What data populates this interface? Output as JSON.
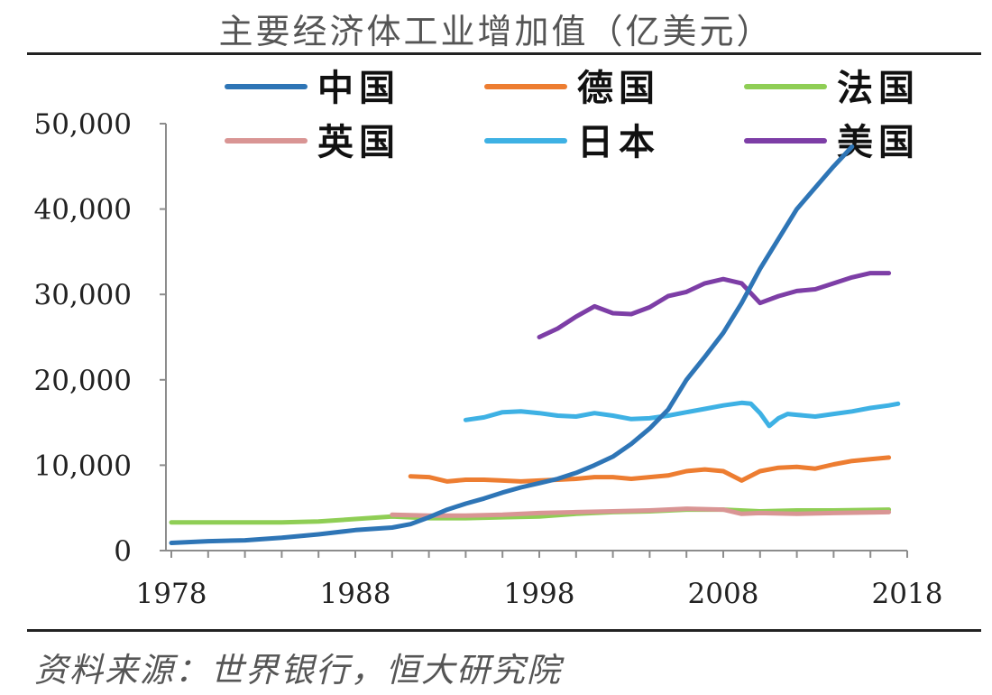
{
  "header": {
    "title": "主要经济体工业增加值（亿美元）"
  },
  "footer": {
    "source": "资料来源：世界银行，恒大研究院"
  },
  "chart_data": {
    "type": "line",
    "title": "主要经济体工业增加值（亿美元）",
    "xlabel": "",
    "ylabel": "",
    "xlim": [
      1978,
      2018
    ],
    "ylim": [
      0,
      50000
    ],
    "x_ticks": [
      1978,
      1988,
      1998,
      2008,
      2018
    ],
    "x_tick_labels": [
      "1978",
      "1988",
      "1998",
      "2008",
      "2018"
    ],
    "y_ticks": [
      0,
      10000,
      20000,
      30000,
      40000,
      50000
    ],
    "y_tick_labels": [
      "0",
      "10,000",
      "20,000",
      "30,000",
      "40,000",
      "50,000"
    ],
    "grid": false,
    "legend_position": "top",
    "series": [
      {
        "name": "中国",
        "color": "#2e75b6",
        "points": [
          [
            1978,
            900
          ],
          [
            1980,
            1100
          ],
          [
            1982,
            1200
          ],
          [
            1984,
            1500
          ],
          [
            1986,
            1900
          ],
          [
            1988,
            2400
          ],
          [
            1990,
            2700
          ],
          [
            1991,
            3100
          ],
          [
            1992,
            3900
          ],
          [
            1993,
            4800
          ],
          [
            1994,
            5500
          ],
          [
            1995,
            6100
          ],
          [
            1996,
            6800
          ],
          [
            1997,
            7400
          ],
          [
            1998,
            7900
          ],
          [
            1999,
            8400
          ],
          [
            2000,
            9100
          ],
          [
            2001,
            10000
          ],
          [
            2002,
            11000
          ],
          [
            2003,
            12500
          ],
          [
            2004,
            14300
          ],
          [
            2005,
            16500
          ],
          [
            2006,
            20000
          ],
          [
            2007,
            22700
          ],
          [
            2008,
            25500
          ],
          [
            2009,
            29000
          ],
          [
            2010,
            33000
          ],
          [
            2011,
            36500
          ],
          [
            2012,
            40000
          ],
          [
            2013,
            42500
          ],
          [
            2014,
            45000
          ],
          [
            2015,
            47300
          ]
        ]
      },
      {
        "name": "德国",
        "color": "#ed7d31",
        "points": [
          [
            1991,
            8700
          ],
          [
            1992,
            8600
          ],
          [
            1993,
            8100
          ],
          [
            1994,
            8300
          ],
          [
            1995,
            8300
          ],
          [
            1996,
            8200
          ],
          [
            1997,
            8100
          ],
          [
            1998,
            8200
          ],
          [
            1999,
            8300
          ],
          [
            2000,
            8400
          ],
          [
            2001,
            8600
          ],
          [
            2002,
            8600
          ],
          [
            2003,
            8400
          ],
          [
            2004,
            8600
          ],
          [
            2005,
            8800
          ],
          [
            2006,
            9300
          ],
          [
            2007,
            9500
          ],
          [
            2008,
            9300
          ],
          [
            2009,
            8200
          ],
          [
            2010,
            9300
          ],
          [
            2011,
            9700
          ],
          [
            2012,
            9800
          ],
          [
            2013,
            9600
          ],
          [
            2014,
            10100
          ],
          [
            2015,
            10500
          ],
          [
            2016,
            10700
          ],
          [
            2017,
            10900
          ]
        ]
      },
      {
        "name": "法国",
        "color": "#8fce55",
        "points": [
          [
            1978,
            3300
          ],
          [
            1980,
            3300
          ],
          [
            1982,
            3300
          ],
          [
            1984,
            3300
          ],
          [
            1986,
            3400
          ],
          [
            1988,
            3700
          ],
          [
            1990,
            4000
          ],
          [
            1992,
            3800
          ],
          [
            1994,
            3800
          ],
          [
            1996,
            3900
          ],
          [
            1998,
            4000
          ],
          [
            2000,
            4300
          ],
          [
            2002,
            4500
          ],
          [
            2004,
            4600
          ],
          [
            2006,
            4800
          ],
          [
            2008,
            4800
          ],
          [
            2010,
            4600
          ],
          [
            2012,
            4700
          ],
          [
            2014,
            4700
          ],
          [
            2017,
            4800
          ]
        ]
      },
      {
        "name": "英国",
        "color": "#d99594",
        "points": [
          [
            1990,
            4200
          ],
          [
            1992,
            4100
          ],
          [
            1994,
            4100
          ],
          [
            1996,
            4200
          ],
          [
            1998,
            4400
          ],
          [
            2000,
            4500
          ],
          [
            2002,
            4600
          ],
          [
            2004,
            4700
          ],
          [
            2006,
            4900
          ],
          [
            2008,
            4800
          ],
          [
            2009,
            4300
          ],
          [
            2010,
            4400
          ],
          [
            2012,
            4300
          ],
          [
            2014,
            4400
          ],
          [
            2017,
            4500
          ]
        ]
      },
      {
        "name": "日本",
        "color": "#3eb1e4",
        "points": [
          [
            1994,
            15300
          ],
          [
            1995,
            15600
          ],
          [
            1996,
            16200
          ],
          [
            1997,
            16300
          ],
          [
            1998,
            16100
          ],
          [
            1999,
            15800
          ],
          [
            2000,
            15700
          ],
          [
            2001,
            16100
          ],
          [
            2002,
            15800
          ],
          [
            2003,
            15400
          ],
          [
            2004,
            15500
          ],
          [
            2005,
            15800
          ],
          [
            2006,
            16200
          ],
          [
            2007,
            16600
          ],
          [
            2008,
            17000
          ],
          [
            2009,
            17300
          ],
          [
            2009.5,
            17200
          ],
          [
            2010,
            16100
          ],
          [
            2010.5,
            14600
          ],
          [
            2011,
            15500
          ],
          [
            2011.5,
            16000
          ],
          [
            2012,
            15900
          ],
          [
            2013,
            15700
          ],
          [
            2014,
            16000
          ],
          [
            2015,
            16300
          ],
          [
            2016,
            16700
          ],
          [
            2017,
            17000
          ],
          [
            2017.5,
            17200
          ]
        ]
      },
      {
        "name": "美国",
        "color": "#7d3ea6",
        "points": [
          [
            1998,
            25000
          ],
          [
            1999,
            26000
          ],
          [
            2000,
            27400
          ],
          [
            2001,
            28600
          ],
          [
            2002,
            27800
          ],
          [
            2003,
            27700
          ],
          [
            2004,
            28500
          ],
          [
            2005,
            29800
          ],
          [
            2006,
            30300
          ],
          [
            2007,
            31300
          ],
          [
            2008,
            31800
          ],
          [
            2009,
            31300
          ],
          [
            2010,
            29000
          ],
          [
            2011,
            29800
          ],
          [
            2012,
            30400
          ],
          [
            2013,
            30600
          ],
          [
            2014,
            31300
          ],
          [
            2015,
            32000
          ],
          [
            2016,
            32500
          ],
          [
            2017,
            32500
          ]
        ]
      }
    ]
  }
}
